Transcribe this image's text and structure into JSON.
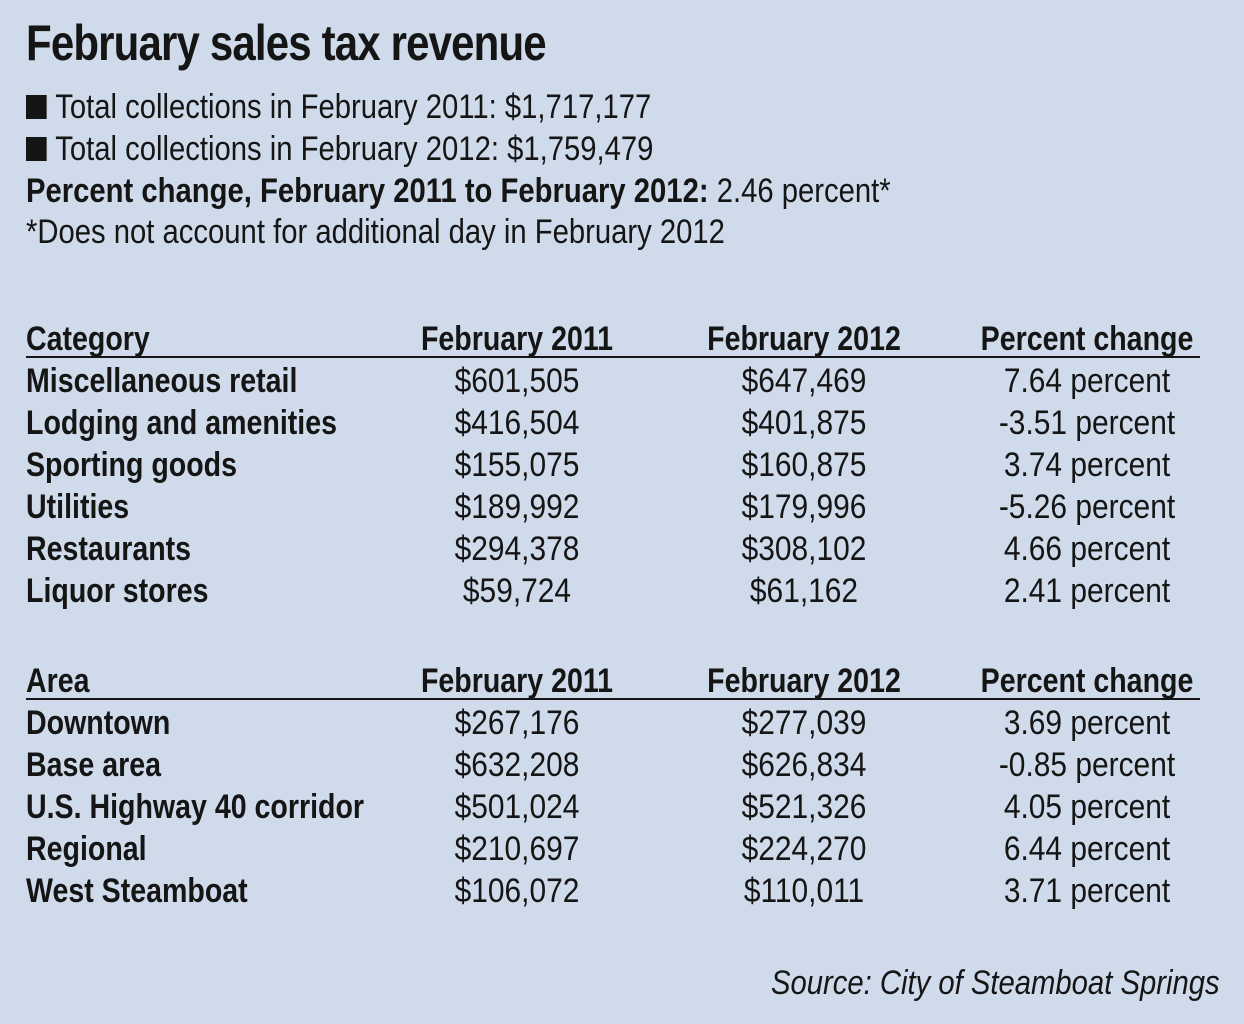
{
  "title": "February sales tax revenue",
  "summary": {
    "line1": "Total collections in February 2011: $1,717,177",
    "line2": "Total collections in February 2012: $1,759,479",
    "pct_label": "Percent change, February 2011 to February 2012:",
    "pct_value": "2.46 percent*",
    "note": "*Does not account for additional day in February 2012"
  },
  "chart_data": [
    {
      "type": "table",
      "columns": [
        "Category",
        "February 2011",
        "February 2012",
        "Percent change"
      ],
      "rows": [
        [
          "Miscellaneous retail",
          "$601,505",
          "$647,469",
          "7.64 percent"
        ],
        [
          "Lodging and amenities",
          "$416,504",
          "$401,875",
          "-3.51 percent"
        ],
        [
          "Sporting goods",
          "$155,075",
          "$160,875",
          "3.74 percent"
        ],
        [
          "Utilities",
          "$189,992",
          "$179,996",
          "-5.26 percent"
        ],
        [
          "Restaurants",
          "$294,378",
          "$308,102",
          "4.66 percent"
        ],
        [
          "Liquor stores",
          "$59,724",
          "$61,162",
          "2.41 percent"
        ]
      ]
    },
    {
      "type": "table",
      "columns": [
        "Area",
        "February 2011",
        "February 2012",
        "Percent change"
      ],
      "rows": [
        [
          "Downtown",
          "$267,176",
          "$277,039",
          "3.69 percent"
        ],
        [
          "Base area",
          "$632,208",
          "$626,834",
          "-0.85 percent"
        ],
        [
          "U.S. Highway 40 corridor",
          "$501,024",
          "$521,326",
          "4.05 percent"
        ],
        [
          "Regional",
          "$210,697",
          "$224,270",
          "6.44 percent"
        ],
        [
          "West Steamboat",
          "$106,072",
          "$110,011",
          "3.71 percent"
        ]
      ]
    }
  ],
  "source": "Source: City of Steamboat Springs"
}
